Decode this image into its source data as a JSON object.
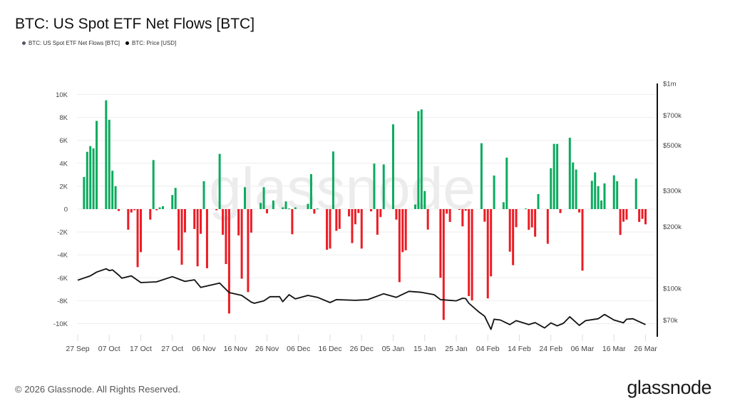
{
  "title": "BTC: US Spot ETF Net Flows [BTC]",
  "legend": [
    {
      "label": "BTC: US Spot ETF Net Flows [BTC]",
      "color": "#555566"
    },
    {
      "label": "BTC: Price [USD]",
      "color": "#000000"
    }
  ],
  "footer": "© 2026 Glassnode. All Rights Reserved.",
  "logo": "glassnode",
  "watermark": "glassnode",
  "colors": {
    "inflow": "#0bab5e",
    "outflow": "#ec1c24",
    "price": "#111111",
    "grid": "#eeeeee"
  },
  "chart_data": {
    "type": "bar",
    "title": "BTC: US Spot ETF Net Flows [BTC]",
    "grid": true,
    "legend_position": "top-left",
    "x_ticks": [
      "27 Sep",
      "07 Oct",
      "17 Oct",
      "27 Oct",
      "06 Nov",
      "16 Nov",
      "26 Nov",
      "06 Dec",
      "16 Dec",
      "26 Dec",
      "05 Jan",
      "15 Jan",
      "25 Jan",
      "04 Feb",
      "14 Feb",
      "24 Feb",
      "06 Mar",
      "16 Mar",
      "26 Mar"
    ],
    "x_tick_dates": [
      "2025-09-27",
      "2025-10-07",
      "2025-10-17",
      "2025-10-27",
      "2025-11-06",
      "2025-11-16",
      "2025-11-26",
      "2025-12-06",
      "2025-12-16",
      "2025-12-26",
      "2026-01-05",
      "2026-01-15",
      "2026-01-25",
      "2026-02-04",
      "2026-02-14",
      "2026-02-24",
      "2026-03-06",
      "2026-03-16",
      "2026-03-26"
    ],
    "xlim": [
      "2025-09-27",
      "2026-03-28"
    ],
    "y_left": {
      "ticks": [
        10000,
        8000,
        6000,
        4000,
        2000,
        0,
        -2000,
        -4000,
        -6000,
        -8000,
        -10000
      ],
      "tick_labels": [
        "10K",
        "8K",
        "6K",
        "4K",
        "2K",
        "0",
        "-2K",
        "-4K",
        "-6K",
        "-8K",
        "-10K"
      ],
      "ylim": [
        -11000,
        11000
      ]
    },
    "y_right": {
      "scale": "log",
      "ticks": [
        1000000,
        700000,
        500000,
        300000,
        200000,
        100000,
        70000
      ],
      "tick_labels": [
        "$1m",
        "$700k",
        "$500k",
        "$300k",
        "$200k",
        "$100k",
        "$70k"
      ],
      "ylim": [
        58000,
        1000000
      ]
    },
    "series": [
      {
        "name": "BTC: US Spot ETF Net Flows [BTC]",
        "type": "bar",
        "axis": "left",
        "data": [
          [
            "2025-09-29",
            2800
          ],
          [
            "2025-09-30",
            5000
          ],
          [
            "2025-10-01",
            5500
          ],
          [
            "2025-10-02",
            5300
          ],
          [
            "2025-10-03",
            7700
          ],
          [
            "2025-10-06",
            9500
          ],
          [
            "2025-10-07",
            7800
          ],
          [
            "2025-10-08",
            3350
          ],
          [
            "2025-10-09",
            2000
          ],
          [
            "2025-10-10",
            -170
          ],
          [
            "2025-10-13",
            -1800
          ],
          [
            "2025-10-14",
            -300
          ],
          [
            "2025-10-15",
            -100
          ],
          [
            "2025-10-16",
            -5070
          ],
          [
            "2025-10-17",
            -3760
          ],
          [
            "2025-10-20",
            -920
          ],
          [
            "2025-10-21",
            4280
          ],
          [
            "2025-10-22",
            -100
          ],
          [
            "2025-10-23",
            150
          ],
          [
            "2025-10-24",
            250
          ],
          [
            "2025-10-27",
            1230
          ],
          [
            "2025-10-28",
            1850
          ],
          [
            "2025-10-29",
            -3600
          ],
          [
            "2025-10-30",
            -4860
          ],
          [
            "2025-10-31",
            -2040
          ],
          [
            "2025-11-03",
            -1740
          ],
          [
            "2025-11-04",
            -5000
          ],
          [
            "2025-11-05",
            -2160
          ],
          [
            "2025-11-06",
            2430
          ],
          [
            "2025-11-07",
            -5170
          ],
          [
            "2025-11-10",
            -100
          ],
          [
            "2025-11-11",
            4820
          ],
          [
            "2025-11-12",
            -2240
          ],
          [
            "2025-11-13",
            -4800
          ],
          [
            "2025-11-14",
            -9120
          ],
          [
            "2025-11-17",
            -2300
          ],
          [
            "2025-11-18",
            -6080
          ],
          [
            "2025-11-19",
            1910
          ],
          [
            "2025-11-20",
            -7250
          ],
          [
            "2025-11-21",
            -2060
          ],
          [
            "2025-11-24",
            540
          ],
          [
            "2025-11-25",
            1910
          ],
          [
            "2025-11-26",
            -370
          ],
          [
            "2025-11-28",
            750
          ],
          [
            "2025-12-01",
            150
          ],
          [
            "2025-12-02",
            670
          ],
          [
            "2025-12-03",
            50
          ],
          [
            "2025-12-04",
            -2200
          ],
          [
            "2025-12-05",
            150
          ],
          [
            "2025-12-09",
            450
          ],
          [
            "2025-12-10",
            3050
          ],
          [
            "2025-12-11",
            -400
          ],
          [
            "2025-12-12",
            50
          ],
          [
            "2025-12-15",
            -3550
          ],
          [
            "2025-12-16",
            -3450
          ],
          [
            "2025-12-17",
            5030
          ],
          [
            "2025-12-18",
            -1900
          ],
          [
            "2025-12-19",
            -1730
          ],
          [
            "2025-12-22",
            -640
          ],
          [
            "2025-12-23",
            -2970
          ],
          [
            "2025-12-24",
            -1330
          ],
          [
            "2025-12-25",
            -350
          ],
          [
            "2025-12-26",
            -3450
          ],
          [
            "2025-12-29",
            -200
          ],
          [
            "2025-12-30",
            3970
          ],
          [
            "2025-12-31",
            -2240
          ],
          [
            "2026-01-01",
            -700
          ],
          [
            "2026-01-02",
            3900
          ],
          [
            "2026-01-05",
            7400
          ],
          [
            "2026-01-06",
            -920
          ],
          [
            "2026-01-07",
            -6380
          ],
          [
            "2026-01-08",
            -3760
          ],
          [
            "2026-01-09",
            -3600
          ],
          [
            "2026-01-12",
            400
          ],
          [
            "2026-01-13",
            8550
          ],
          [
            "2026-01-14",
            8700
          ],
          [
            "2026-01-15",
            1580
          ],
          [
            "2026-01-16",
            -1790
          ],
          [
            "2026-01-20",
            -6000
          ],
          [
            "2026-01-21",
            -9680
          ],
          [
            "2026-01-22",
            -400
          ],
          [
            "2026-01-23",
            -1120
          ],
          [
            "2026-01-26",
            -50
          ],
          [
            "2026-01-27",
            -1510
          ],
          [
            "2026-01-28",
            -150
          ],
          [
            "2026-01-29",
            -7600
          ],
          [
            "2026-01-30",
            -7970
          ],
          [
            "2026-02-02",
            5750
          ],
          [
            "2026-02-03",
            -1100
          ],
          [
            "2026-02-04",
            -7800
          ],
          [
            "2026-02-05",
            -5880
          ],
          [
            "2026-02-06",
            2930
          ],
          [
            "2026-02-09",
            600
          ],
          [
            "2026-02-10",
            4490
          ],
          [
            "2026-02-11",
            -3720
          ],
          [
            "2026-02-12",
            -4900
          ],
          [
            "2026-02-13",
            -1580
          ],
          [
            "2026-02-16",
            50
          ],
          [
            "2026-02-17",
            -1810
          ],
          [
            "2026-02-18",
            -1600
          ],
          [
            "2026-02-19",
            -2410
          ],
          [
            "2026-02-20",
            1310
          ],
          [
            "2026-02-23",
            -3030
          ],
          [
            "2026-02-24",
            3570
          ],
          [
            "2026-02-25",
            5690
          ],
          [
            "2026-02-26",
            5690
          ],
          [
            "2026-02-27",
            -350
          ],
          [
            "2026-03-02",
            6230
          ],
          [
            "2026-03-03",
            4070
          ],
          [
            "2026-03-04",
            3450
          ],
          [
            "2026-03-05",
            -300
          ],
          [
            "2026-03-06",
            -5380
          ],
          [
            "2026-03-09",
            2470
          ],
          [
            "2026-03-10",
            3200
          ],
          [
            "2026-03-11",
            2000
          ],
          [
            "2026-03-12",
            750
          ],
          [
            "2026-03-13",
            2240
          ],
          [
            "2026-03-16",
            2950
          ],
          [
            "2026-03-17",
            2430
          ],
          [
            "2026-03-18",
            -2260
          ],
          [
            "2026-03-19",
            -1100
          ],
          [
            "2026-03-20",
            -920
          ],
          [
            "2026-03-23",
            2660
          ],
          [
            "2026-03-24",
            -1120
          ],
          [
            "2026-03-25",
            -850
          ],
          [
            "2026-03-26",
            -1330
          ]
        ]
      },
      {
        "name": "BTC: Price [USD]",
        "type": "line",
        "axis": "right",
        "data": [
          [
            "2025-09-27",
            109500
          ],
          [
            "2025-10-01",
            115000
          ],
          [
            "2025-10-03",
            120000
          ],
          [
            "2025-10-06",
            124500
          ],
          [
            "2025-10-07",
            122000
          ],
          [
            "2025-10-08",
            123000
          ],
          [
            "2025-10-10",
            116000
          ],
          [
            "2025-10-11",
            112000
          ],
          [
            "2025-10-14",
            115000
          ],
          [
            "2025-10-17",
            106600
          ],
          [
            "2025-10-22",
            107500
          ],
          [
            "2025-10-27",
            114000
          ],
          [
            "2025-10-31",
            108000
          ],
          [
            "2025-11-03",
            110000
          ],
          [
            "2025-11-05",
            101000
          ],
          [
            "2025-11-11",
            106000
          ],
          [
            "2025-11-14",
            95300
          ],
          [
            "2025-11-18",
            92300
          ],
          [
            "2025-11-21",
            85600
          ],
          [
            "2025-11-22",
            84500
          ],
          [
            "2025-11-25",
            86800
          ],
          [
            "2025-11-27",
            91000
          ],
          [
            "2025-11-30",
            91000
          ],
          [
            "2025-12-01",
            86000
          ],
          [
            "2025-12-03",
            93000
          ],
          [
            "2025-12-05",
            88700
          ],
          [
            "2025-12-09",
            92300
          ],
          [
            "2025-12-12",
            90300
          ],
          [
            "2025-12-16",
            85200
          ],
          [
            "2025-12-18",
            88000
          ],
          [
            "2025-12-24",
            87300
          ],
          [
            "2025-12-28",
            88000
          ],
          [
            "2026-01-02",
            94000
          ],
          [
            "2026-01-06",
            90300
          ],
          [
            "2026-01-10",
            96600
          ],
          [
            "2026-01-14",
            95500
          ],
          [
            "2026-01-18",
            93000
          ],
          [
            "2026-01-20",
            88000
          ],
          [
            "2026-01-25",
            86800
          ],
          [
            "2026-01-27",
            89400
          ],
          [
            "2026-01-28",
            89000
          ],
          [
            "2026-01-29",
            84500
          ],
          [
            "2026-02-01",
            77000
          ],
          [
            "2026-02-03",
            73000
          ],
          [
            "2026-02-05",
            63000
          ],
          [
            "2026-02-06",
            70600
          ],
          [
            "2026-02-08",
            70000
          ],
          [
            "2026-02-11",
            66500
          ],
          [
            "2026-02-13",
            69500
          ],
          [
            "2026-02-17",
            66500
          ],
          [
            "2026-02-19",
            68000
          ],
          [
            "2026-02-22",
            64000
          ],
          [
            "2026-02-24",
            67700
          ],
          [
            "2026-02-26",
            65500
          ],
          [
            "2026-02-28",
            67500
          ],
          [
            "2026-03-02",
            72600
          ],
          [
            "2026-03-05",
            65900
          ],
          [
            "2026-03-07",
            69500
          ],
          [
            "2026-03-11",
            71000
          ],
          [
            "2026-03-13",
            74500
          ],
          [
            "2026-03-16",
            70000
          ],
          [
            "2026-03-19",
            67800
          ],
          [
            "2026-03-20",
            70600
          ],
          [
            "2026-03-22",
            71000
          ],
          [
            "2026-03-26",
            66500
          ]
        ]
      }
    ]
  }
}
